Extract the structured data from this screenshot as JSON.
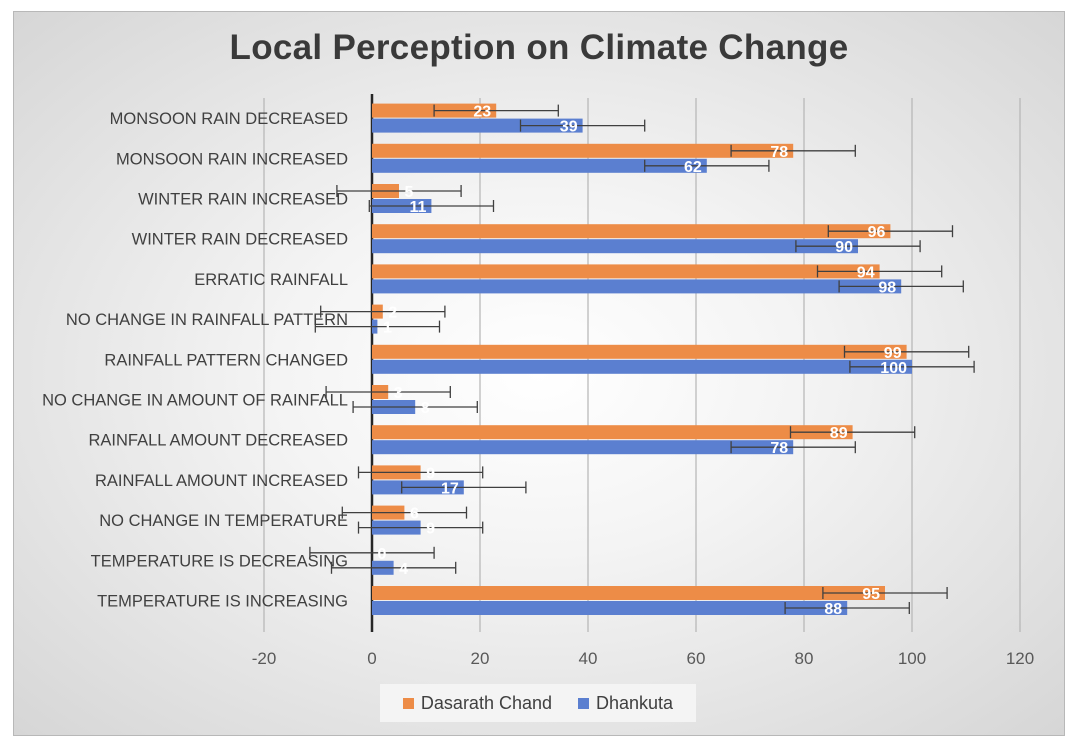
{
  "chart_data": {
    "type": "bar",
    "orientation": "horizontal",
    "title": "Local Perception on Climate Change",
    "xlabel": "",
    "ylabel": "",
    "xlim": [
      -20,
      120
    ],
    "xticks": [
      -20,
      0,
      20,
      40,
      60,
      80,
      100,
      120
    ],
    "grid": true,
    "legend_position": "bottom",
    "error_bars": true,
    "error_margin": 11.5,
    "categories": [
      "MONSOON RAIN DECREASED",
      "MONSOON RAIN INCREASED",
      "WINTER RAIN INCREASED",
      "WINTER RAIN DECREASED",
      "ERRATIC RAINFALL",
      "NO CHANGE IN RAINFALL PATTERN",
      "RAINFALL PATTERN CHANGED",
      "NO CHANGE IN AMOUNT OF RAINFALL",
      "RAINFALL AMOUNT DECREASED",
      "RAINFALL AMOUNT INCREASED",
      "NO CHANGE IN TEMPERATURE",
      "TEMPERATURE IS DECREASING",
      "TEMPERATURE IS INCREASING"
    ],
    "series": [
      {
        "name": "Dasarath Chand",
        "color": "#ED8C47",
        "values": [
          23,
          78,
          5,
          96,
          94,
          2,
          99,
          3,
          89,
          9,
          6,
          0,
          95
        ]
      },
      {
        "name": "Dhankuta",
        "color": "#5B7FD0",
        "values": [
          39,
          62,
          11,
          90,
          98,
          1,
          100,
          8,
          78,
          17,
          9,
          4,
          88
        ]
      }
    ]
  }
}
